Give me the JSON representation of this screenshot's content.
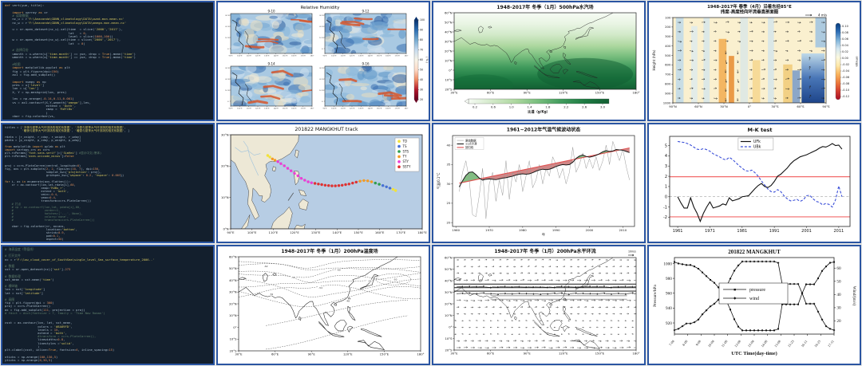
{
  "layout": {
    "panel_border_color": "#2a55a2",
    "code_bg": "#131f2d",
    "page_bg": "#e9e9e6"
  },
  "code_panels": [
    {
      "id": "code-omega-section",
      "lines": [
        "def vert(yue, title):",
        "",
        "    import xarray as xr",
        "    # 读取数据",
        "    nc_u = r'F:\\Anaconda\\GDNN_climatology\\DATA\\uwnd.mon.mean.nc'",
        "    nc_w = r'F:\\Anaconda\\GDNN_climatology\\DATA\\omega.mon.mean.nc'",
        "",
        "    u = xr.open_dataset(nc_u).sel(time  = slice('2000','2017'),",
        "                                  lat   = 0,",
        "                                  level = slice(1000,100))",
        "    w = xr.open_dataset(nc_w).sel(time = slice('2000','2017'),",
        "                                  lat  = 0)",
        "",
        "    # 选择月份",
        "    umonth = u.where(u['time.month'] == yue, drop = True).mean('time')",
        "    wmonth = w.where(w['time.month'] == yue, drop = True).mean('time')",
        "",
        "    #绘图",
        "    import matplotlib.pyplot as plt",
        "    fig = plt.figure(dpi=150)",
        "    ax1 = fig.add_subplot()",
        "",
        "    import numpy as np",
        "    pres = u['level']",
        "    lon = u['lon']",
        "    X, Y = np.meshgrid(lon, pres)",
        "",
        "    lev = np.arange(-0.14,0.11,0.001)",
        "    vs = ax1.contourf(X,Y,wmonth['omega'],lev,",
        "                      extend = 'both',",
        "                      cmap = 'RdYlBu'",
        "                      )",
        "    cbar = fig.colorbar(vs,"
      ]
    },
    {
      "id": "code-correlation-maps",
      "lines": [
        "titles = ['冷夜与夏季大气环流场的相关系数图', '冷昼与夏季大气环流场的相关系数图',",
        "          '暖夜与夏季大气环流场的相关系数图', '暖昼与夏季大气环流场的相关系数图', ]",
        "",
        "rdata = [r_cnight, r_cday, r_wnight, r_wday]",
        "pdata = [p_cnight, p_cday, p_wnight, p_wday]",
        "",
        "from matplotlib import pylab as plt",
        "import cartopy.crs as ccrs",
        "plt.rcParams['font.sans-serif']=['SimHei'] #显示中文(黑体)",
        "plt.rcParams['axes.unicode_minus']=False",
        "",
        "",
        "proj = ccrs.PlateCarree(central_longitude=0)",
        "fig, axs = plt.subplots(2, 2, figsize=(10, 7), dpi=150,",
        "                        subplot_kw={'projection': proj},",
        "                        gridspec_kw={'wspace': 0.2, 'hspace': 0.003})",
        "",
        "for i, ax in enumerate(axs.flatten()):",
        "    cr = ax.contourf(lon,lat,rdata[i],60,",
        "                     cmap='RdBu_r',",
        "                     extend = 'both',",
        "                     vmin=-0.4,",
        "                     vmax=0.4,",
        "                     transform=ccrs.PlateCarree())",
        "    # 打点",
        "    # cp = ax.contourf(lon,lat, pdata[i],60,",
        "    #                  zorder=1,",
        "    #                  hatches=['...', None],",
        "    #                  colors='none',",
        "    #                  transform=ccrs.PlateCarree())",
        "",
        "    cbar = fig.colorbar(cr, ax=axs,",
        "                        location='bottom',",
        "                        shrink=0.9,",
        "                        pad=0.1,",
        "                        aspect=50)"
      ]
    },
    {
      "id": "code-sst-contours",
      "lines": [
        "# 海表温度（等值线）",
        "",
        "# 打开文件",
        "nc = r'F:\\low_cloud_cover_of_SouthSea\\single_level_Sea_surface_temperature_2006..'",
        "",
        "# 数据",
        "sst = xr.open_dataset(nc)['sst']-273",
        "",
        "# 数据处理",
        "sst_mean = sst.mean('time')",
        "",
        "# 横纵轴",
        "lon = sst['longitude']",
        "lat = sst['latitude']",
        "",
        "# 画图",
        "fig = plt.figure(dpi = 300)",
        "proj = ccrs.PlateCarree()",
        "ax = fig.add_subplot(111, projection = proj)",
        "# fdict = dict(fontsize = 7, family = 'Time New Roman')",
        "",
        "",
        "csst = ax.contour(lon, lat, sst_mean,",
        "                  colors = '#8A89FD',",
        "                  levels = 15,",
        "                  extend = 'both',",
        "                  #transform = ccrs.PlateCarree(),",
        "                  linewidths=0.8,",
        "                  linestyles ='solid',",
        "                  )",
        "plt.clabel(csst, inline=True, fontsize=6, inline_spacing=15)",
        "",
        "xticks = np.arange(100,130,5)",
        "yticks = np.arange(0,30,5)"
      ]
    }
  ],
  "chart_data": [
    {
      "id": "rh",
      "type": "heatmap",
      "title": "Relative Humidity",
      "subplot_titles": [
        "9-10",
        "9-12",
        "9-14",
        "9-16"
      ],
      "yticks": [
        "30°N",
        "20°N",
        "10°N",
        "0°"
      ],
      "xticks": [
        "90°E",
        "100°E",
        "110°E",
        "120°E",
        "130°E",
        "140°E",
        "150°E",
        "160°E",
        "170°E",
        "180°"
      ],
      "colorbar": {
        "ticks": [
          "100",
          "90",
          "80",
          "70",
          "60",
          "50",
          "40",
          "30",
          "20"
        ],
        "label": "( % )"
      },
      "note": "four relative-humidity maps, blue=high humidity, red/orange=dry filaments"
    },
    {
      "id": "moist",
      "type": "filled_contour_map",
      "title": "1948-2017年 冬季（1月）500hPa水汽场",
      "yticks": [
        "60°N",
        "50°N",
        "40°N",
        "30°N",
        "20°N",
        "10°N",
        "0°",
        "10°S",
        "20°S"
      ],
      "xticks": [
        "30°E",
        "60°E",
        "90°E",
        "120°E",
        "150°E",
        "180°"
      ],
      "colorbar": {
        "ticks": [
          "0.2",
          "0.6",
          "1.0",
          "1.4",
          "1.8",
          "2.2",
          "2.6",
          "3.0"
        ],
        "label": "比湿（g/Kg）"
      },
      "note": "specific humidity, light green in north to dark green in tropics"
    },
    {
      "id": "sect",
      "type": "vector_section",
      "title": "1948-2017年 春季（4月）沿着东经85°E",
      "subtitle": "纬度-高度经向环流垂直剖面图",
      "ref_arrow_label": "4 m/s",
      "ylabel": "Height (hPa)",
      "yticks": [
        "100",
        "200",
        "300",
        "400",
        "500",
        "600",
        "700",
        "800",
        "900",
        "1000"
      ],
      "xticks": [
        "90°N",
        "60°N",
        "30°N",
        "0°",
        "30°S",
        "60°S",
        "90°S"
      ],
      "colorbar": {
        "ticks": [
          "0.10",
          "0.08",
          "0.06",
          "0.04",
          "0.02",
          "0.00",
          "-0.02",
          "-0.04",
          "-0.06",
          "-0.08",
          "-0.10",
          "-0.12"
        ],
        "label": "omega"
      }
    },
    {
      "id": "track",
      "type": "track_map",
      "title": "201822 MANGKHUT track",
      "lon_range": [
        90,
        180
      ],
      "lat_range": [
        0,
        30
      ],
      "xticks": [
        "90°E",
        "100°E",
        "110°E",
        "120°E",
        "130°E",
        "140°E",
        "150°E",
        "160°E",
        "170°E",
        "180°E"
      ],
      "yticks": [
        "0°N",
        "10°N",
        "20°N",
        "30°N"
      ],
      "legend": [
        [
          "TD",
          "#f2e23a"
        ],
        [
          "TS",
          "#4671d5"
        ],
        [
          "STS",
          "#2e9e4f"
        ],
        [
          "TY",
          "#f59b23"
        ],
        [
          "STY",
          "#eb3dd6"
        ],
        [
          "SSTY",
          "#e03131"
        ]
      ],
      "points": [
        [
          167.5,
          12.2,
          "TD"
        ],
        [
          166.3,
          12.6,
          "TD"
        ],
        [
          164.8,
          13.0,
          "TS"
        ],
        [
          163.2,
          13.4,
          "TS"
        ],
        [
          161.5,
          13.8,
          "TS"
        ],
        [
          159.8,
          14.2,
          "STS"
        ],
        [
          158.0,
          14.6,
          "STS"
        ],
        [
          156.2,
          15.0,
          "TY"
        ],
        [
          154.4,
          15.3,
          "TY"
        ],
        [
          152.6,
          15.4,
          "TY"
        ],
        [
          150.8,
          15.2,
          "TY"
        ],
        [
          149.0,
          14.9,
          "SSTY"
        ],
        [
          147.3,
          14.6,
          "SSTY"
        ],
        [
          145.6,
          14.3,
          "SSTY"
        ],
        [
          144.0,
          14.1,
          "SSTY"
        ],
        [
          142.4,
          13.9,
          "SSTY"
        ],
        [
          140.8,
          13.8,
          "SSTY"
        ],
        [
          139.2,
          13.7,
          "SSTY"
        ],
        [
          137.6,
          13.7,
          "SSTY"
        ],
        [
          136.0,
          13.8,
          "SSTY"
        ],
        [
          134.4,
          13.9,
          "SSTY"
        ],
        [
          132.8,
          14.1,
          "SSTY"
        ],
        [
          131.2,
          14.3,
          "SSTY"
        ],
        [
          129.6,
          14.5,
          "SSTY"
        ],
        [
          128.0,
          14.7,
          "STY"
        ],
        [
          126.4,
          15.0,
          "STY"
        ],
        [
          124.8,
          15.5,
          "STY"
        ],
        [
          123.2,
          16.1,
          "STY"
        ],
        [
          121.6,
          16.9,
          "STY"
        ],
        [
          120.0,
          17.7,
          "STY"
        ],
        [
          118.4,
          18.5,
          "STY"
        ],
        [
          116.8,
          19.3,
          "STY"
        ],
        [
          115.2,
          20.1,
          "STY"
        ],
        [
          113.6,
          20.8,
          "STY"
        ],
        [
          112.2,
          21.4,
          "STY"
        ],
        [
          110.8,
          21.9,
          "TY"
        ],
        [
          109.6,
          22.3,
          "TY"
        ],
        [
          108.4,
          22.9,
          "TD"
        ],
        [
          107.4,
          23.4,
          "TD"
        ]
      ]
    },
    {
      "id": "clim",
      "type": "line",
      "title": "1961~2012年气温气候波动状态",
      "xlabel": "年",
      "ylabel": "气温/0.1°C",
      "x_start": 1961,
      "x_end": 2012,
      "xticks": [
        1960,
        1970,
        1980,
        1990,
        2000,
        2010
      ],
      "yticks": [
        20,
        25,
        30,
        35,
        40
      ],
      "ylim": [
        19,
        42.5
      ],
      "legend": [
        [
          "原始数据",
          "#9a9a9a"
        ],
        [
          "11点平滑",
          "#1a1a1a"
        ],
        [
          "回归线",
          "#e05252"
        ]
      ],
      "regression": {
        "x1": 1961,
        "y1": 30.2,
        "x2": 2012,
        "y2": 39.3
      },
      "raw": [
        28,
        33,
        36,
        31,
        22,
        21.5,
        27,
        34,
        21,
        30,
        33,
        25.5,
        31,
        27,
        36,
        26,
        33,
        30.5,
        35,
        28,
        32,
        36,
        29,
        31,
        35,
        30,
        34,
        32,
        37,
        35,
        31.5,
        34,
        30,
        33,
        39.5,
        33,
        35,
        38,
        34,
        36.5,
        34,
        37,
        33.5,
        36,
        40,
        35,
        41,
        38.5,
        36,
        39,
        34.5,
        31
      ],
      "smooth": [
        29.2,
        30.8,
        32.2,
        33.0,
        33.1,
        32.4,
        31.5,
        31.0,
        31.2,
        31.3,
        31.2,
        31.1,
        31.3,
        31.5,
        31.6,
        31.8,
        32.0,
        32.3,
        32.5,
        32.6,
        32.5,
        32.6,
        32.9,
        33.3,
        33.6,
        33.8,
        33.7,
        33.8,
        34.1,
        34.5,
        34.8,
        35.0,
        34.9,
        35.0,
        35.6,
        36.6,
        37.2,
        37.5,
        37.1,
        36.9,
        37.1,
        37.4,
        37.8,
        38.3,
        38.6,
        38.4,
        38.5,
        38.9,
        38.8,
        38.7,
        38.4,
        38.1
      ]
    },
    {
      "id": "mk",
      "type": "line",
      "title": "M-K test",
      "x_start": 1961,
      "x_end": 2012,
      "xticks": [
        1961,
        1971,
        1981,
        1991,
        2001,
        2011
      ],
      "yticks": [
        -2,
        -1,
        0,
        1,
        2,
        3,
        4,
        5
      ],
      "ylim": [
        -2.9,
        5.9
      ],
      "significance_level": 1.96,
      "legend": [
        [
          "UFk",
          "black-solid"
        ],
        [
          "UBk",
          "blue-dashed"
        ]
      ],
      "UFk": [
        0.0,
        -0.6,
        -1.1,
        -1.1,
        -0.1,
        -1.0,
        -1.6,
        -2.4,
        -1.6,
        -1.0,
        -0.5,
        -1.1,
        -1.0,
        -0.9,
        -0.7,
        -0.8,
        -0.1,
        -0.4,
        -0.3,
        -0.2,
        0.0,
        0.05,
        0.1,
        0.45,
        0.8,
        1.1,
        1.3,
        1.0,
        0.9,
        1.1,
        1.5,
        2.0,
        2.2,
        2.5,
        2.8,
        3.2,
        3.5,
        3.7,
        3.9,
        4.0,
        4.1,
        4.25,
        4.4,
        4.55,
        4.75,
        4.9,
        4.85,
        5.0,
        5.2,
        5.0,
        5.05,
        4.65
      ],
      "UBk": [
        5.4,
        5.35,
        5.3,
        5.2,
        5.05,
        4.85,
        4.65,
        4.6,
        4.7,
        4.6,
        4.45,
        4.2,
        4.05,
        3.9,
        3.7,
        3.6,
        3.85,
        3.65,
        3.35,
        3.05,
        2.8,
        2.55,
        2.5,
        2.6,
        2.35,
        2.0,
        1.55,
        1.15,
        0.75,
        0.5,
        0.45,
        0.7,
        0.5,
        0.1,
        -0.2,
        -0.4,
        -0.35,
        -0.25,
        -0.45,
        -0.3,
        0.1,
        0.15,
        -0.2,
        -0.45,
        -0.55,
        -0.8,
        -0.65,
        -0.75,
        -1.0,
        -0.3,
        1.05,
        0.0
      ]
    },
    {
      "id": "t200",
      "type": "contour_map",
      "title": "1948-2017年 冬季（1月）200hPa温度场",
      "yticks": [
        "60°N",
        "50°N",
        "40°N",
        "30°N",
        "20°N",
        "10°N",
        "0°",
        "10°S",
        "20°S"
      ],
      "xticks": [
        "30°E",
        "60°E",
        "90°E",
        "120°E",
        "150°E",
        "180°"
      ],
      "contour_labels": [
        "-62",
        "-60",
        "-58",
        "-56",
        "-54",
        "-52",
        "-50",
        "-48"
      ]
    },
    {
      "id": "c200",
      "type": "quiver_map",
      "title": "1948-2017年 冬季（1月）200hPa水平环流",
      "ref_arrow_label": "10m/s",
      "yticks": [
        "60°N",
        "50°N",
        "40°N",
        "30°N",
        "20°N",
        "10°N",
        "0°",
        "10°S",
        "20°S"
      ],
      "xticks": [
        "30°E",
        "60°E",
        "90°E",
        "120°E",
        "150°E",
        "180°"
      ]
    },
    {
      "id": "pw",
      "type": "line",
      "title": "201822 MANGKHUT",
      "xlabel": "UTC Time(day-time)",
      "ylabel_left": "Pressure/hPa",
      "ylabel_right": "Wind/(m/s)",
      "xticks": [
        "7-08",
        "8-08",
        "9-08",
        "10-08",
        "11-08",
        "12-08",
        "13-08",
        "14-08",
        "15-08",
        "15-23",
        "16-11",
        "16-23",
        "17-11"
      ],
      "yticks_left": [
        920,
        940,
        960,
        980,
        1000
      ],
      "yticks_right": [
        20,
        30,
        40,
        50,
        60
      ],
      "legend": [
        "pressure",
        "wind"
      ],
      "pressure": [
        1002,
        1000,
        999,
        998,
        998,
        996,
        993,
        988,
        983,
        978,
        974,
        968,
        960,
        950,
        938,
        925,
        915,
        910,
        910,
        910,
        910,
        910,
        910,
        910,
        910,
        910,
        912,
        945,
        945,
        945,
        945,
        945,
        960,
        972,
        972,
        972,
        980,
        990,
        996,
        1001,
        1002
      ],
      "wind": [
        13,
        14,
        16,
        18,
        18,
        19,
        21,
        25,
        28,
        31,
        33,
        36,
        41,
        46,
        52,
        58,
        62,
        65,
        65,
        65,
        65,
        65,
        65,
        65,
        65,
        65,
        64,
        48,
        48,
        48,
        48,
        48,
        41,
        33,
        33,
        33,
        27,
        21,
        16,
        14,
        13
      ]
    }
  ]
}
